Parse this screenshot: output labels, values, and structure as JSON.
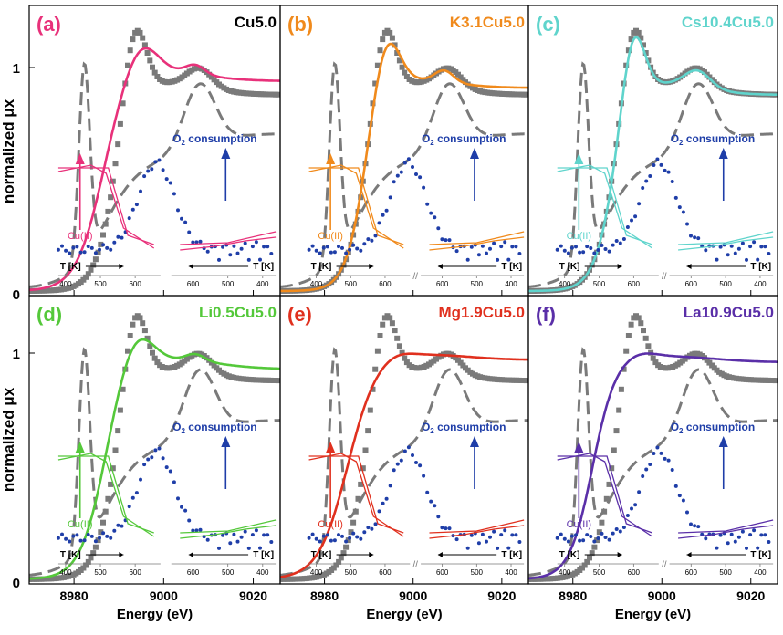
{
  "figure": {
    "y_axis_label": "normalized μx",
    "x_axis_label": "Energy (eV)",
    "x_ticks": [
      "8980",
      "9000",
      "9020"
    ],
    "y_ticks": [
      "0",
      "1"
    ]
  },
  "colors": {
    "reference_dark": "#7a7a7a",
    "reference_dashed": "#7a7a7a",
    "o2": "#1f3ea8",
    "panel_a": "#e8317a",
    "panel_b": "#f08a1c",
    "panel_c": "#5fd4cc",
    "panel_d": "#54c83a",
    "panel_e": "#e0301e",
    "panel_f": "#5a2fa8"
  },
  "chart_data": [
    {
      "type": "line",
      "panel": "(a)",
      "title": "Cu5.0",
      "color_key": "panel_a",
      "xlim": [
        8970,
        9026
      ],
      "ylim": [
        0,
        1.25
      ],
      "inset": {
        "o2_label": "O2 consumption",
        "cu_label": "Cu(II)",
        "t_label": "T [K]",
        "left_ticks": [
          "400",
          "500",
          "600"
        ],
        "right_ticks": [
          "600",
          "500",
          "400"
        ],
        "break_mark": ""
      }
    },
    {
      "type": "line",
      "panel": "(b)",
      "title": "K3.1Cu5.0",
      "color_key": "panel_b",
      "xlim": [
        8970,
        9026
      ],
      "ylim": [
        0,
        1.25
      ],
      "inset": {
        "o2_label": "O2 consumption",
        "cu_label": "Cu(II)",
        "t_label": "T [K]",
        "left_ticks": [
          "400",
          "500",
          "600"
        ],
        "right_ticks": [
          "600",
          "500",
          "400"
        ],
        "break_mark": "//"
      }
    },
    {
      "type": "line",
      "panel": "(c)",
      "title": "Cs10.4Cu5.0",
      "color_key": "panel_c",
      "xlim": [
        8970,
        9026
      ],
      "ylim": [
        0,
        1.25
      ],
      "inset": {
        "o2_label": "O2 consumption",
        "cu_label": "Cu(II)",
        "t_label": "T [K]",
        "left_ticks": [
          "400",
          "500",
          "600"
        ],
        "right_ticks": [
          "600",
          "500",
          "400"
        ],
        "break_mark": "//"
      }
    },
    {
      "type": "line",
      "panel": "(d)",
      "title": "Li0.5Cu5.0",
      "color_key": "panel_d",
      "xlim": [
        8970,
        9026
      ],
      "ylim": [
        0,
        1.25
      ],
      "inset": {
        "o2_label": "O2 consumption",
        "cu_label": "Cu(II)",
        "t_label": "T [K]",
        "left_ticks": [
          "400",
          "500",
          "600"
        ],
        "right_ticks": [
          "600",
          "500",
          "400"
        ],
        "break_mark": ""
      }
    },
    {
      "type": "line",
      "panel": "(e)",
      "title": "Mg1.9Cu5.0",
      "color_key": "panel_e",
      "xlim": [
        8970,
        9026
      ],
      "ylim": [
        0,
        1.25
      ],
      "inset": {
        "o2_label": "O2 consumption",
        "cu_label": "Cu(II)",
        "t_label": "T [K]",
        "left_ticks": [
          "400",
          "500",
          "600"
        ],
        "right_ticks": [
          "600",
          "500",
          "400"
        ],
        "break_mark": "//"
      }
    },
    {
      "type": "line",
      "panel": "(f)",
      "title": "La10.9Cu5.0",
      "color_key": "panel_f",
      "xlim": [
        8970,
        9026
      ],
      "ylim": [
        0,
        1.25
      ],
      "inset": {
        "o2_label": "O2 consumption",
        "cu_label": "Cu(II)",
        "t_label": "T [K]",
        "left_ticks": [
          "400",
          "500",
          "600"
        ],
        "right_ticks": [
          "600",
          "500",
          "400"
        ],
        "break_mark": "//"
      }
    }
  ]
}
